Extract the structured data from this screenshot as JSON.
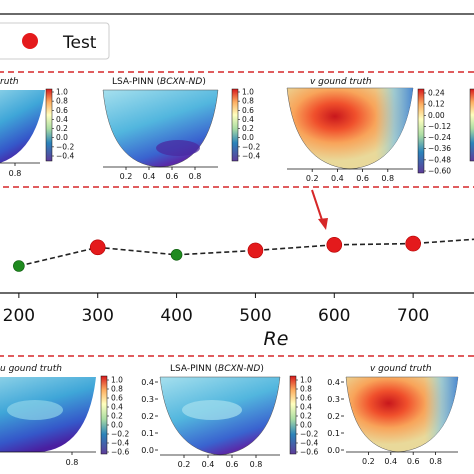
{
  "chart_data": {
    "type": "scatter",
    "xlabel": "Re",
    "x_ticks": [
      "200",
      "300",
      "400",
      "500",
      "600",
      "700"
    ],
    "xlim": [
      100,
      800
    ],
    "legend": {
      "placement": "top-left",
      "entries": [
        {
          "label": "Test",
          "color": "#e41a1c"
        }
      ]
    },
    "series": [
      {
        "name": "",
        "style": "dashed-line",
        "color": "#222222",
        "x": [
          200,
          300,
          400,
          500,
          600,
          700,
          800
        ],
        "y": [
          0.0,
          0.3,
          0.18,
          0.25,
          0.34,
          0.36,
          0.45
        ]
      },
      {
        "name": "Test",
        "color": "#e41a1c",
        "x": [
          300,
          500,
          600,
          700
        ],
        "y": [
          0.3,
          0.25,
          0.34,
          0.36
        ]
      },
      {
        "name": "",
        "color": "#1f8a1f",
        "x": [
          200,
          400
        ],
        "y": [
          0.0,
          0.18
        ]
      }
    ],
    "top_row": {
      "panels": [
        {
          "title_prefix": "",
          "title_italic": "ruth",
          "x_ticks": [
            "0.8"
          ],
          "colorbar_ticks": [
            "1.0",
            "0.8",
            "0.6",
            "0.4",
            "0.2",
            "0.0",
            "−0.2",
            "−0.4"
          ]
        },
        {
          "title_prefix": "LSA-PINN (",
          "title_italic": "BCXN-ND",
          "title_suffix": ")",
          "x_ticks": [
            "0.2",
            "0.4",
            "0.6",
            "0.8"
          ],
          "colorbar_ticks": [
            "1.0",
            "0.8",
            "0.6",
            "0.4",
            "0.2",
            "0.0",
            "−0.2",
            "−0.4"
          ]
        },
        {
          "title_prefix": "",
          "title_italic": "v   gound truth",
          "x_ticks": [
            "0.2",
            "0.4",
            "0.6",
            "0.8"
          ],
          "colorbar_ticks": [
            "0.24",
            "0.12",
            "0.00",
            "−0.12",
            "−0.24",
            "−0.36",
            "−0.48",
            "−0.60"
          ]
        }
      ]
    },
    "bottom_row": {
      "panels": [
        {
          "title_prefix": "",
          "title_italic": "u   gound truth",
          "x_ticks": [
            "0.8"
          ],
          "colorbar_ticks": [
            "1.0",
            "0.8",
            "0.6",
            "0.4",
            "0.2",
            "0.0",
            "−0.2",
            "−0.4",
            "−0.6"
          ]
        },
        {
          "title_prefix": "LSA-PINN (",
          "title_italic": "BCXN-ND",
          "title_suffix": ")",
          "y_ticks": [
            "0.4",
            "0.3",
            "0.2",
            "0.1",
            "0.0"
          ],
          "x_ticks": [
            "0.2",
            "0.4",
            "0.6",
            "0.8"
          ],
          "colorbar_ticks": [
            "1.0",
            "0.8",
            "0.6",
            "0.4",
            "0.2",
            "0.0",
            "−0.2",
            "−0.4",
            "−0.6"
          ]
        },
        {
          "title_prefix": "",
          "title_italic": "v   gound truth",
          "y_ticks": [
            "0.4",
            "0.3",
            "0.2",
            "0.1",
            "0.0"
          ],
          "x_ticks": [
            "0.2",
            "0.4",
            "0.6",
            "0.8"
          ]
        }
      ]
    }
  }
}
